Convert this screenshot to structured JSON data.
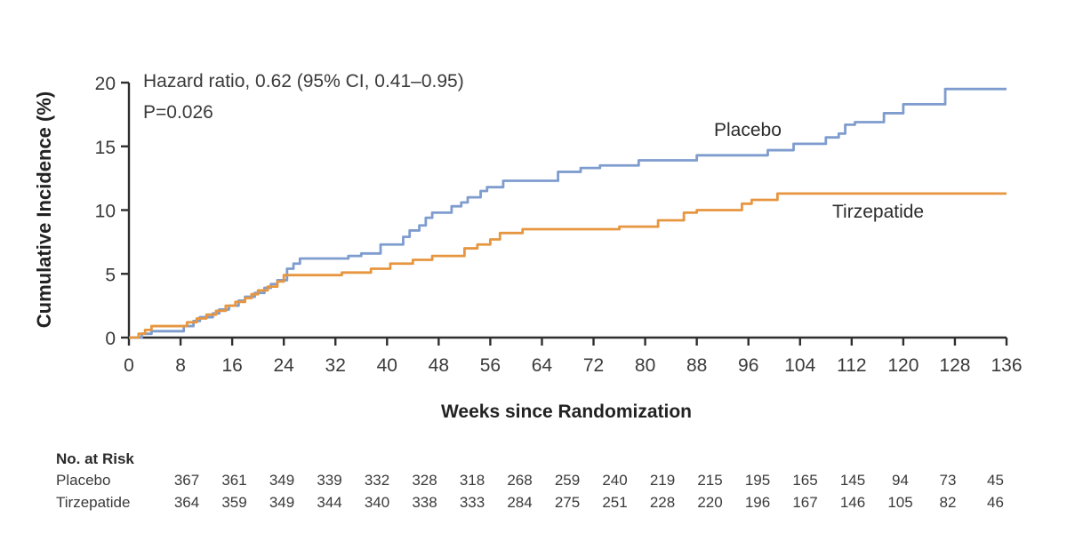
{
  "chart_data": {
    "type": "line",
    "subtype": "kaplan-meier-step",
    "title": "",
    "xlabel": "Weeks since Randomization",
    "ylabel": "Cumulative Incidence (%)",
    "xlim": [
      0,
      136
    ],
    "ylim": [
      0,
      20
    ],
    "xticks": [
      0,
      8,
      16,
      24,
      32,
      40,
      48,
      56,
      64,
      72,
      80,
      88,
      96,
      104,
      112,
      120,
      128,
      136
    ],
    "yticks": [
      0,
      5,
      10,
      15,
      20
    ],
    "grid": false,
    "legend_position": "inline-labels",
    "annotation": [
      "Hazard ratio, 0.62 (95% CI, 0.41–0.95)",
      "P=0.026"
    ],
    "colors": {
      "placebo": "#7e9cce",
      "tirzepatide": "#e79640",
      "axis": "#2e2e2e",
      "text": "#2f2f2f"
    },
    "series": [
      {
        "name": "Placebo",
        "color": "#7e9cce",
        "points": [
          [
            0,
            0
          ],
          [
            2,
            0.3
          ],
          [
            3.5,
            0.5
          ],
          [
            8.5,
            0.9
          ],
          [
            10,
            1.3
          ],
          [
            11,
            1.6
          ],
          [
            13,
            1.9
          ],
          [
            14,
            2.2
          ],
          [
            15.5,
            2.5
          ],
          [
            17,
            2.9
          ],
          [
            18,
            3.2
          ],
          [
            19.5,
            3.5
          ],
          [
            21,
            3.9
          ],
          [
            22,
            4.2
          ],
          [
            23,
            4.5
          ],
          [
            24.5,
            5.4
          ],
          [
            25.5,
            5.8
          ],
          [
            26.5,
            6.2
          ],
          [
            34,
            6.4
          ],
          [
            36,
            6.6
          ],
          [
            39,
            7.3
          ],
          [
            42.5,
            7.9
          ],
          [
            43.5,
            8.4
          ],
          [
            45,
            8.8
          ],
          [
            46,
            9.4
          ],
          [
            47,
            9.8
          ],
          [
            50,
            10.3
          ],
          [
            51.5,
            10.6
          ],
          [
            52.5,
            11.0
          ],
          [
            54.5,
            11.5
          ],
          [
            55.5,
            11.8
          ],
          [
            58,
            12.3
          ],
          [
            66.5,
            13.0
          ],
          [
            70,
            13.3
          ],
          [
            73,
            13.5
          ],
          [
            79,
            13.9
          ],
          [
            88,
            14.3
          ],
          [
            99,
            14.7
          ],
          [
            103,
            15.2
          ],
          [
            108,
            15.7
          ],
          [
            110,
            16.0
          ],
          [
            111,
            16.7
          ],
          [
            112.5,
            16.9
          ],
          [
            117,
            17.6
          ],
          [
            120,
            18.3
          ],
          [
            126.5,
            19.5
          ],
          [
            136,
            19.5
          ]
        ]
      },
      {
        "name": "Tirzepatide",
        "color": "#e79640",
        "points": [
          [
            0,
            0
          ],
          [
            1.5,
            0.3
          ],
          [
            2.5,
            0.6
          ],
          [
            3.5,
            0.9
          ],
          [
            9,
            1.2
          ],
          [
            10.5,
            1.5
          ],
          [
            12,
            1.8
          ],
          [
            13.5,
            2.1
          ],
          [
            15,
            2.5
          ],
          [
            16.5,
            2.8
          ],
          [
            18,
            3.1
          ],
          [
            19,
            3.4
          ],
          [
            20,
            3.7
          ],
          [
            21.5,
            4.0
          ],
          [
            23,
            4.4
          ],
          [
            24,
            4.9
          ],
          [
            33,
            5.1
          ],
          [
            37.5,
            5.4
          ],
          [
            40.5,
            5.8
          ],
          [
            44,
            6.1
          ],
          [
            47,
            6.4
          ],
          [
            52,
            7.0
          ],
          [
            54,
            7.3
          ],
          [
            56,
            7.7
          ],
          [
            57.5,
            8.2
          ],
          [
            61,
            8.5
          ],
          [
            76,
            8.7
          ],
          [
            82,
            9.2
          ],
          [
            86,
            9.8
          ],
          [
            88,
            10.0
          ],
          [
            95,
            10.5
          ],
          [
            96.5,
            10.8
          ],
          [
            100.5,
            11.3
          ],
          [
            136,
            11.3
          ]
        ]
      }
    ]
  },
  "risk_table": {
    "header": "No. at Risk",
    "rows": [
      {
        "label": "Placebo",
        "values": [
          367,
          361,
          349,
          339,
          332,
          328,
          318,
          268,
          259,
          240,
          219,
          215,
          195,
          165,
          145,
          94,
          73,
          45
        ]
      },
      {
        "label": "Tirzepatide",
        "values": [
          364,
          359,
          349,
          344,
          340,
          338,
          333,
          284,
          275,
          251,
          228,
          220,
          196,
          167,
          146,
          105,
          82,
          46
        ]
      }
    ]
  }
}
